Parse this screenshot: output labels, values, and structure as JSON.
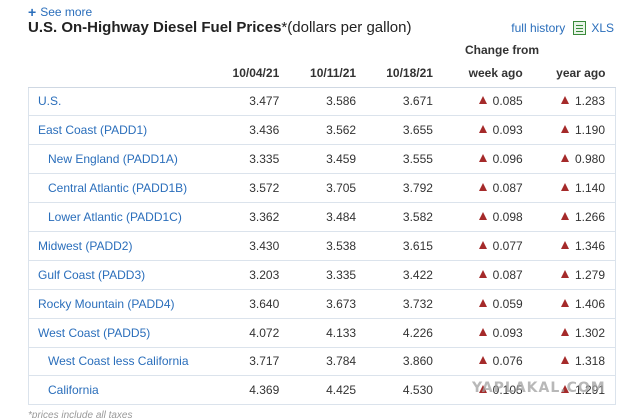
{
  "see_more": "See more",
  "title": "U.S. On-Highway Diesel Fuel Prices",
  "title_unit": "*(dollars per gallon)",
  "links": {
    "history": "full history",
    "xls": "XLS"
  },
  "change_from": "Change from",
  "columns": [
    "",
    "10/04/21",
    "10/11/21",
    "10/18/21",
    "week ago",
    "year ago"
  ],
  "rows": [
    {
      "name": "U.S.",
      "sub": false,
      "v1": "3.477",
      "v2": "3.586",
      "v3": "3.671",
      "week": "0.085",
      "year": "1.283"
    },
    {
      "name": "East Coast (PADD1)",
      "sub": false,
      "v1": "3.436",
      "v2": "3.562",
      "v3": "3.655",
      "week": "0.093",
      "year": "1.190"
    },
    {
      "name": "New England (PADD1A)",
      "sub": true,
      "v1": "3.335",
      "v2": "3.459",
      "v3": "3.555",
      "week": "0.096",
      "year": "0.980"
    },
    {
      "name": "Central Atlantic (PADD1B)",
      "sub": true,
      "v1": "3.572",
      "v2": "3.705",
      "v3": "3.792",
      "week": "0.087",
      "year": "1.140"
    },
    {
      "name": "Lower Atlantic (PADD1C)",
      "sub": true,
      "v1": "3.362",
      "v2": "3.484",
      "v3": "3.582",
      "week": "0.098",
      "year": "1.266"
    },
    {
      "name": "Midwest (PADD2)",
      "sub": false,
      "v1": "3.430",
      "v2": "3.538",
      "v3": "3.615",
      "week": "0.077",
      "year": "1.346"
    },
    {
      "name": "Gulf Coast (PADD3)",
      "sub": false,
      "v1": "3.203",
      "v2": "3.335",
      "v3": "3.422",
      "week": "0.087",
      "year": "1.279"
    },
    {
      "name": "Rocky Mountain (PADD4)",
      "sub": false,
      "v1": "3.640",
      "v2": "3.673",
      "v3": "3.732",
      "week": "0.059",
      "year": "1.406"
    },
    {
      "name": "West Coast (PADD5)",
      "sub": false,
      "v1": "4.072",
      "v2": "4.133",
      "v3": "4.226",
      "week": "0.093",
      "year": "1.302"
    },
    {
      "name": "West Coast less California",
      "sub": true,
      "v1": "3.717",
      "v2": "3.784",
      "v3": "3.860",
      "week": "0.076",
      "year": "1.318"
    },
    {
      "name": "California",
      "sub": true,
      "v1": "4.369",
      "v2": "4.425",
      "v3": "4.530",
      "week": "0.105",
      "year": "1.291"
    }
  ],
  "footnote": "*prices include all taxes",
  "watermark": "YAPLAKAL.COM",
  "colors": {
    "link": "#2a6ebb",
    "arrow_up": "#a52a2a",
    "border": "#dbe3ec"
  },
  "icons": {
    "see_more": "plus-icon",
    "xls": "spreadsheet-icon",
    "change": "up-arrow-icon"
  }
}
